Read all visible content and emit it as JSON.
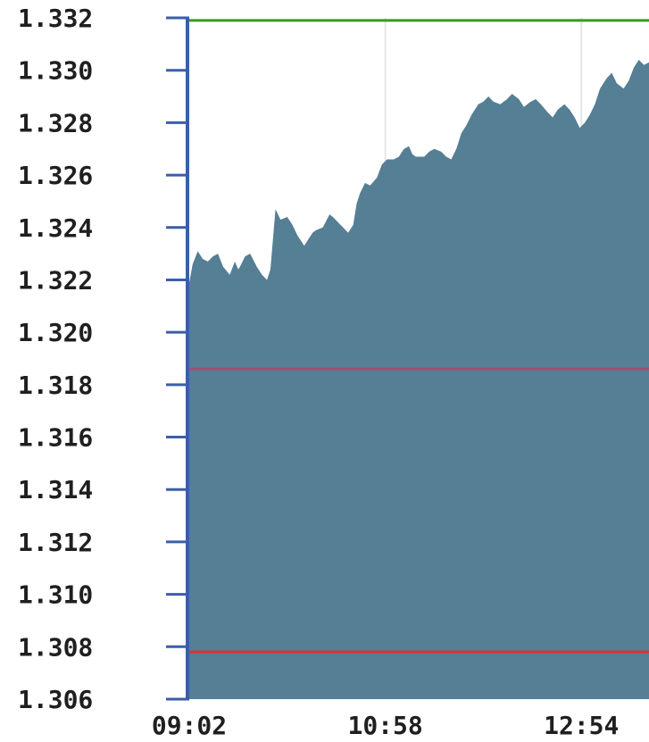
{
  "chart_data": {
    "type": "area",
    "title": "",
    "xlabel": "",
    "ylabel": "",
    "ylim": [
      1.306,
      1.332
    ],
    "y_ticks": [
      "1.332",
      "1.330",
      "1.328",
      "1.326",
      "1.324",
      "1.322",
      "1.320",
      "1.318",
      "1.316",
      "1.314",
      "1.312",
      "1.310",
      "1.308",
      "1.306"
    ],
    "x_tick_labels": [
      "09:02",
      "10:58",
      "12:54"
    ],
    "x_tick_minutes": [
      0,
      116,
      232
    ],
    "x_range_minutes": [
      0,
      272
    ],
    "grid": true,
    "series": [
      {
        "values_x_minutes": [
          0,
          2,
          5,
          8,
          11,
          14,
          17,
          20,
          24,
          27,
          29,
          30,
          33,
          36,
          40,
          43,
          46,
          48,
          51,
          54,
          58,
          61,
          64,
          66,
          68,
          70,
          73,
          75,
          79,
          83,
          85,
          88,
          91,
          94,
          97,
          99,
          101,
          104,
          107,
          111,
          114,
          117,
          121,
          124,
          127,
          130,
          132,
          134,
          137,
          139,
          142,
          145,
          149,
          152,
          155,
          158,
          161,
          164,
          167,
          171,
          174,
          177,
          180,
          184,
          188,
          191,
          195,
          198,
          202,
          205,
          208,
          212,
          215,
          218,
          222,
          225,
          228,
          231,
          234,
          237,
          240,
          243,
          247,
          250,
          253,
          257,
          260,
          263,
          266,
          269,
          272
        ],
        "values_y": [
          1.3219,
          1.3226,
          1.3231,
          1.3228,
          1.3227,
          1.3229,
          1.323,
          1.3225,
          1.3222,
          1.3227,
          1.3224,
          1.3225,
          1.3229,
          1.323,
          1.3225,
          1.3222,
          1.322,
          1.3224,
          1.3247,
          1.3243,
          1.3244,
          1.3241,
          1.3237,
          1.3235,
          1.3233,
          1.3235,
          1.3238,
          1.3239,
          1.324,
          1.3245,
          1.3244,
          1.3242,
          1.324,
          1.3238,
          1.3241,
          1.3249,
          1.3253,
          1.3257,
          1.3256,
          1.3259,
          1.3264,
          1.3266,
          1.3266,
          1.3267,
          1.327,
          1.3271,
          1.3268,
          1.3267,
          1.3267,
          1.3267,
          1.3269,
          1.327,
          1.3269,
          1.3267,
          1.3266,
          1.327,
          1.3276,
          1.3279,
          1.3283,
          1.3287,
          1.3288,
          1.329,
          1.3288,
          1.3287,
          1.3289,
          1.3291,
          1.3289,
          1.3286,
          1.3288,
          1.3289,
          1.3287,
          1.3284,
          1.3282,
          1.3285,
          1.3287,
          1.3285,
          1.3282,
          1.3278,
          1.328,
          1.3283,
          1.3287,
          1.3293,
          1.3297,
          1.3299,
          1.3295,
          1.3293,
          1.3296,
          1.3301,
          1.3304,
          1.3302,
          1.3303
        ]
      }
    ],
    "reference_lines": [
      {
        "value": 1.3319,
        "color": "#3a9a20"
      },
      {
        "value": 1.3186,
        "color": "#a05070"
      },
      {
        "value": 1.3078,
        "color": "#e03030"
      }
    ],
    "colors": {
      "area_fill": "#547f94",
      "axis": "#3b5ea8",
      "grid": "#e6e6e6",
      "tick_text": "#1f1f1f"
    }
  }
}
